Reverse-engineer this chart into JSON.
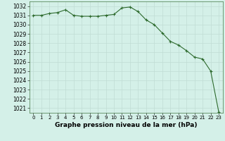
{
  "hours": [
    0,
    1,
    2,
    3,
    4,
    5,
    6,
    7,
    8,
    9,
    10,
    11,
    12,
    13,
    14,
    15,
    16,
    17,
    18,
    19,
    20,
    21,
    22,
    23
  ],
  "pressure": [
    1031.0,
    1031.0,
    1031.2,
    1031.3,
    1031.6,
    1031.0,
    1030.9,
    1030.9,
    1030.9,
    1031.0,
    1031.1,
    1031.8,
    1031.9,
    1031.4,
    1030.5,
    1030.0,
    1029.1,
    1028.2,
    1027.8,
    1027.2,
    1026.5,
    1026.3,
    1025.0,
    1020.6
  ],
  "line_color": "#2d6a2d",
  "marker_color": "#2d6a2d",
  "bg_color": "#d4f0e8",
  "grid_major_color": "#c0ddd4",
  "grid_minor_color": "#c0ddd4",
  "xlabel": "Graphe pression niveau de la mer (hPa)",
  "ylim": [
    1020.5,
    1032.5
  ],
  "xlim": [
    -0.5,
    23.5
  ],
  "yticks": [
    1021,
    1022,
    1023,
    1024,
    1025,
    1026,
    1027,
    1028,
    1029,
    1030,
    1031,
    1032
  ],
  "xticks": [
    0,
    1,
    2,
    3,
    4,
    5,
    6,
    7,
    8,
    9,
    10,
    11,
    12,
    13,
    14,
    15,
    16,
    17,
    18,
    19,
    20,
    21,
    22,
    23
  ],
  "ytick_fontsize": 5.5,
  "xtick_fontsize": 5.0,
  "xlabel_fontsize": 6.5,
  "marker_size": 3.0,
  "marker_ew": 0.8,
  "line_width": 0.8
}
